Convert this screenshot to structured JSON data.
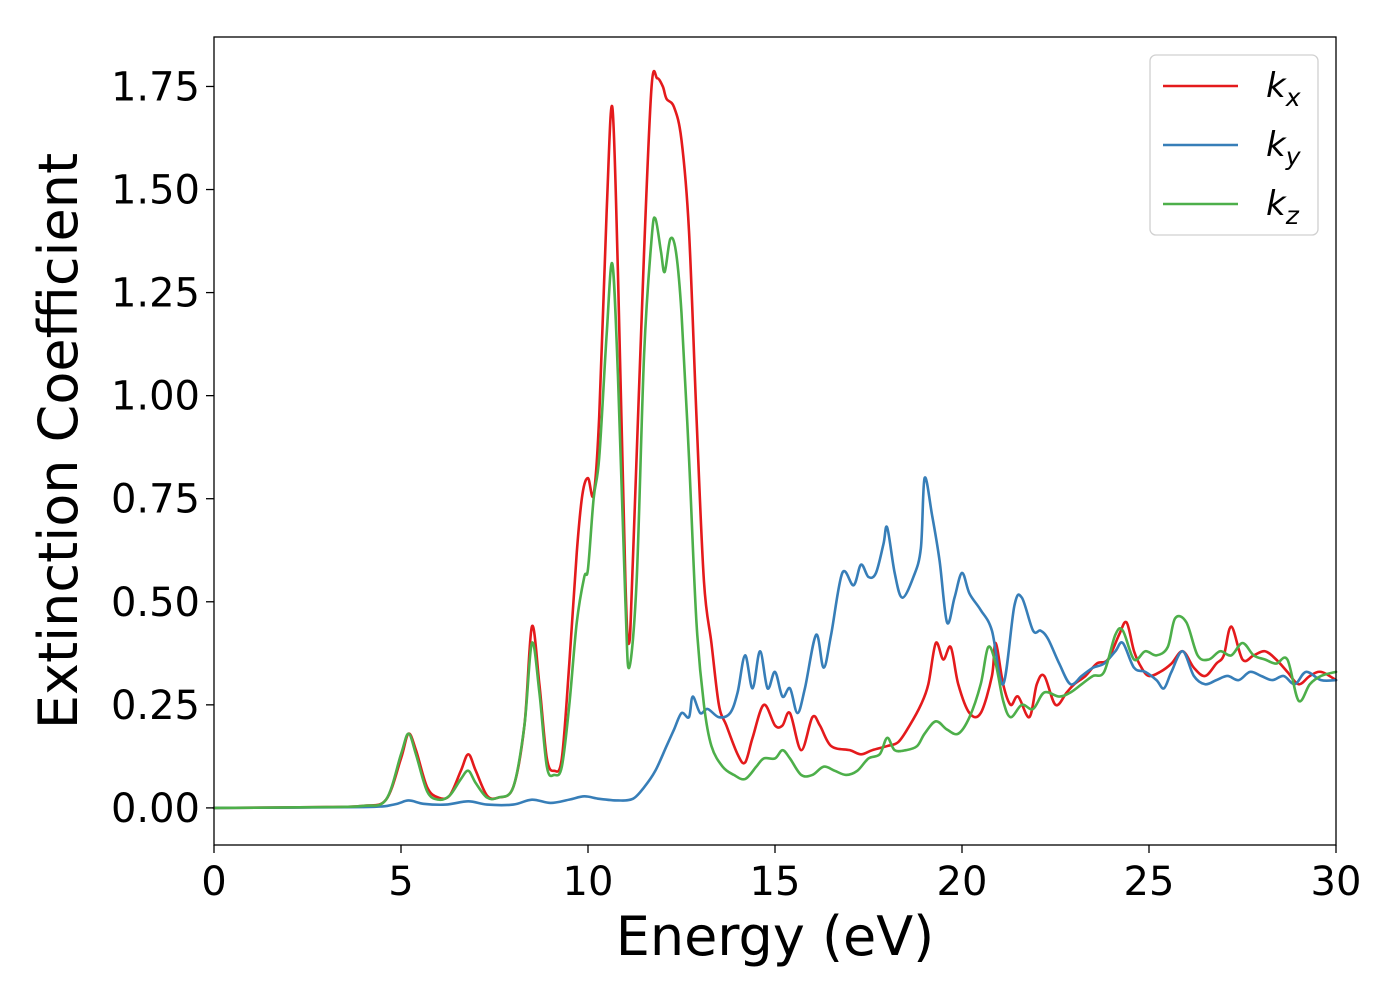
{
  "chart_data": {
    "type": "line",
    "xlabel": "Energy (eV)",
    "ylabel": "Extinction Coefficient",
    "xlim": [
      0,
      30
    ],
    "ylim": [
      -0.09,
      1.87
    ],
    "xticks": [
      0,
      5,
      10,
      15,
      20,
      25,
      30
    ],
    "xtick_labels": [
      "0",
      "5",
      "10",
      "15",
      "20",
      "25",
      "30"
    ],
    "yticks": [
      0.0,
      0.25,
      0.5,
      0.75,
      1.0,
      1.25,
      1.5,
      1.75
    ],
    "ytick_labels": [
      "0.00",
      "0.25",
      "0.50",
      "0.75",
      "1.00",
      "1.25",
      "1.50",
      "1.75"
    ],
    "grid": false,
    "legend_position": "top-right",
    "series": [
      {
        "name": "k_x",
        "legend_base": "k",
        "legend_sub": "x",
        "color": "#e41a1c",
        "points": [
          [
            0,
            0.0
          ],
          [
            3,
            0.002
          ],
          [
            4,
            0.005
          ],
          [
            4.6,
            0.02
          ],
          [
            5.0,
            0.12
          ],
          [
            5.2,
            0.18
          ],
          [
            5.4,
            0.14
          ],
          [
            5.7,
            0.05
          ],
          [
            6.0,
            0.025
          ],
          [
            6.3,
            0.03
          ],
          [
            6.6,
            0.09
          ],
          [
            6.8,
            0.13
          ],
          [
            7.0,
            0.09
          ],
          [
            7.3,
            0.03
          ],
          [
            7.6,
            0.025
          ],
          [
            8.0,
            0.05
          ],
          [
            8.3,
            0.2
          ],
          [
            8.5,
            0.44
          ],
          [
            8.7,
            0.3
          ],
          [
            8.9,
            0.12
          ],
          [
            9.1,
            0.09
          ],
          [
            9.3,
            0.12
          ],
          [
            9.5,
            0.35
          ],
          [
            9.7,
            0.62
          ],
          [
            9.85,
            0.76
          ],
          [
            10.0,
            0.8
          ],
          [
            10.15,
            0.76
          ],
          [
            10.3,
            0.95
          ],
          [
            10.5,
            1.45
          ],
          [
            10.65,
            1.7
          ],
          [
            10.8,
            1.3
          ],
          [
            11.0,
            0.55
          ],
          [
            11.1,
            0.4
          ],
          [
            11.2,
            0.6
          ],
          [
            11.5,
            1.35
          ],
          [
            11.7,
            1.75
          ],
          [
            11.85,
            1.77
          ],
          [
            12.0,
            1.75
          ],
          [
            12.1,
            1.72
          ],
          [
            12.3,
            1.7
          ],
          [
            12.5,
            1.62
          ],
          [
            12.7,
            1.4
          ],
          [
            12.9,
            0.95
          ],
          [
            13.1,
            0.55
          ],
          [
            13.3,
            0.4
          ],
          [
            13.5,
            0.25
          ],
          [
            13.7,
            0.2
          ],
          [
            14.0,
            0.13
          ],
          [
            14.2,
            0.11
          ],
          [
            14.4,
            0.17
          ],
          [
            14.7,
            0.25
          ],
          [
            15.0,
            0.2
          ],
          [
            15.2,
            0.2
          ],
          [
            15.4,
            0.23
          ],
          [
            15.7,
            0.14
          ],
          [
            16.0,
            0.22
          ],
          [
            16.2,
            0.2
          ],
          [
            16.5,
            0.15
          ],
          [
            17.0,
            0.14
          ],
          [
            17.3,
            0.13
          ],
          [
            17.6,
            0.14
          ],
          [
            18.0,
            0.15
          ],
          [
            18.3,
            0.16
          ],
          [
            18.6,
            0.2
          ],
          [
            18.9,
            0.25
          ],
          [
            19.1,
            0.3
          ],
          [
            19.3,
            0.4
          ],
          [
            19.5,
            0.36
          ],
          [
            19.7,
            0.39
          ],
          [
            19.9,
            0.3
          ],
          [
            20.2,
            0.23
          ],
          [
            20.5,
            0.23
          ],
          [
            20.8,
            0.32
          ],
          [
            20.9,
            0.4
          ],
          [
            21.1,
            0.3
          ],
          [
            21.3,
            0.25
          ],
          [
            21.5,
            0.27
          ],
          [
            21.8,
            0.22
          ],
          [
            22.0,
            0.3
          ],
          [
            22.2,
            0.32
          ],
          [
            22.5,
            0.25
          ],
          [
            22.8,
            0.28
          ],
          [
            23.0,
            0.3
          ],
          [
            23.3,
            0.32
          ],
          [
            23.6,
            0.35
          ],
          [
            23.9,
            0.36
          ],
          [
            24.2,
            0.42
          ],
          [
            24.4,
            0.45
          ],
          [
            24.6,
            0.38
          ],
          [
            24.8,
            0.34
          ],
          [
            25.0,
            0.32
          ],
          [
            25.3,
            0.33
          ],
          [
            25.6,
            0.35
          ],
          [
            25.9,
            0.38
          ],
          [
            26.2,
            0.34
          ],
          [
            26.5,
            0.32
          ],
          [
            26.8,
            0.35
          ],
          [
            27.0,
            0.37
          ],
          [
            27.2,
            0.44
          ],
          [
            27.5,
            0.36
          ],
          [
            27.8,
            0.37
          ],
          [
            28.1,
            0.38
          ],
          [
            28.4,
            0.36
          ],
          [
            28.7,
            0.33
          ],
          [
            29.0,
            0.3
          ],
          [
            29.3,
            0.32
          ],
          [
            29.6,
            0.33
          ],
          [
            30.0,
            0.31
          ]
        ]
      },
      {
        "name": "k_y",
        "legend_base": "k",
        "legend_sub": "y",
        "color": "#377eb8",
        "points": [
          [
            0,
            0.0
          ],
          [
            4,
            0.002
          ],
          [
            4.8,
            0.008
          ],
          [
            5.2,
            0.018
          ],
          [
            5.6,
            0.01
          ],
          [
            6.2,
            0.008
          ],
          [
            6.8,
            0.016
          ],
          [
            7.3,
            0.008
          ],
          [
            8.0,
            0.008
          ],
          [
            8.5,
            0.02
          ],
          [
            9.0,
            0.012
          ],
          [
            9.5,
            0.02
          ],
          [
            9.9,
            0.028
          ],
          [
            10.3,
            0.022
          ],
          [
            10.8,
            0.018
          ],
          [
            11.2,
            0.022
          ],
          [
            11.5,
            0.05
          ],
          [
            11.8,
            0.09
          ],
          [
            12.1,
            0.15
          ],
          [
            12.3,
            0.19
          ],
          [
            12.5,
            0.23
          ],
          [
            12.7,
            0.22
          ],
          [
            12.8,
            0.27
          ],
          [
            13.0,
            0.23
          ],
          [
            13.2,
            0.24
          ],
          [
            13.5,
            0.22
          ],
          [
            13.8,
            0.23
          ],
          [
            14.0,
            0.28
          ],
          [
            14.2,
            0.37
          ],
          [
            14.4,
            0.29
          ],
          [
            14.6,
            0.38
          ],
          [
            14.8,
            0.29
          ],
          [
            15.0,
            0.33
          ],
          [
            15.2,
            0.27
          ],
          [
            15.4,
            0.29
          ],
          [
            15.6,
            0.23
          ],
          [
            15.8,
            0.29
          ],
          [
            16.1,
            0.42
          ],
          [
            16.3,
            0.34
          ],
          [
            16.5,
            0.42
          ],
          [
            16.8,
            0.57
          ],
          [
            17.1,
            0.54
          ],
          [
            17.3,
            0.59
          ],
          [
            17.5,
            0.56
          ],
          [
            17.7,
            0.57
          ],
          [
            17.9,
            0.64
          ],
          [
            18.0,
            0.68
          ],
          [
            18.2,
            0.57
          ],
          [
            18.4,
            0.51
          ],
          [
            18.7,
            0.56
          ],
          [
            18.9,
            0.63
          ],
          [
            19.0,
            0.8
          ],
          [
            19.2,
            0.71
          ],
          [
            19.4,
            0.6
          ],
          [
            19.6,
            0.45
          ],
          [
            19.8,
            0.51
          ],
          [
            20.0,
            0.57
          ],
          [
            20.2,
            0.52
          ],
          [
            20.5,
            0.48
          ],
          [
            20.8,
            0.43
          ],
          [
            21.1,
            0.3
          ],
          [
            21.4,
            0.49
          ],
          [
            21.6,
            0.51
          ],
          [
            21.9,
            0.43
          ],
          [
            22.1,
            0.43
          ],
          [
            22.3,
            0.41
          ],
          [
            22.6,
            0.35
          ],
          [
            22.9,
            0.3
          ],
          [
            23.2,
            0.32
          ],
          [
            23.5,
            0.34
          ],
          [
            23.8,
            0.35
          ],
          [
            24.1,
            0.38
          ],
          [
            24.3,
            0.4
          ],
          [
            24.6,
            0.34
          ],
          [
            24.9,
            0.33
          ],
          [
            25.2,
            0.31
          ],
          [
            25.4,
            0.29
          ],
          [
            25.6,
            0.33
          ],
          [
            25.9,
            0.38
          ],
          [
            26.2,
            0.32
          ],
          [
            26.5,
            0.3
          ],
          [
            26.8,
            0.31
          ],
          [
            27.1,
            0.32
          ],
          [
            27.4,
            0.31
          ],
          [
            27.7,
            0.33
          ],
          [
            28.0,
            0.32
          ],
          [
            28.3,
            0.31
          ],
          [
            28.6,
            0.32
          ],
          [
            28.9,
            0.3
          ],
          [
            29.2,
            0.33
          ],
          [
            29.6,
            0.31
          ],
          [
            30.0,
            0.31
          ]
        ]
      },
      {
        "name": "k_z",
        "legend_base": "k",
        "legend_sub": "z",
        "color": "#4daf4a",
        "points": [
          [
            0,
            0.0
          ],
          [
            3,
            0.002
          ],
          [
            4,
            0.005
          ],
          [
            4.6,
            0.02
          ],
          [
            5.0,
            0.13
          ],
          [
            5.2,
            0.18
          ],
          [
            5.4,
            0.13
          ],
          [
            5.7,
            0.04
          ],
          [
            6.0,
            0.02
          ],
          [
            6.3,
            0.03
          ],
          [
            6.6,
            0.07
          ],
          [
            6.8,
            0.09
          ],
          [
            7.0,
            0.06
          ],
          [
            7.3,
            0.025
          ],
          [
            7.6,
            0.025
          ],
          [
            8.0,
            0.05
          ],
          [
            8.3,
            0.2
          ],
          [
            8.5,
            0.4
          ],
          [
            8.7,
            0.28
          ],
          [
            8.9,
            0.1
          ],
          [
            9.1,
            0.08
          ],
          [
            9.3,
            0.1
          ],
          [
            9.5,
            0.25
          ],
          [
            9.7,
            0.45
          ],
          [
            9.9,
            0.56
          ],
          [
            10.0,
            0.58
          ],
          [
            10.15,
            0.75
          ],
          [
            10.3,
            0.85
          ],
          [
            10.5,
            1.15
          ],
          [
            10.65,
            1.32
          ],
          [
            10.8,
            1.05
          ],
          [
            11.0,
            0.5
          ],
          [
            11.1,
            0.34
          ],
          [
            11.3,
            0.55
          ],
          [
            11.5,
            1.1
          ],
          [
            11.7,
            1.38
          ],
          [
            11.8,
            1.43
          ],
          [
            11.95,
            1.35
          ],
          [
            12.05,
            1.3
          ],
          [
            12.2,
            1.38
          ],
          [
            12.35,
            1.35
          ],
          [
            12.5,
            1.2
          ],
          [
            12.7,
            0.85
          ],
          [
            12.9,
            0.45
          ],
          [
            13.1,
            0.25
          ],
          [
            13.3,
            0.15
          ],
          [
            13.6,
            0.1
          ],
          [
            13.9,
            0.08
          ],
          [
            14.2,
            0.07
          ],
          [
            14.5,
            0.1
          ],
          [
            14.7,
            0.12
          ],
          [
            15.0,
            0.12
          ],
          [
            15.2,
            0.14
          ],
          [
            15.4,
            0.12
          ],
          [
            15.7,
            0.08
          ],
          [
            16.0,
            0.08
          ],
          [
            16.3,
            0.1
          ],
          [
            16.6,
            0.09
          ],
          [
            16.9,
            0.08
          ],
          [
            17.2,
            0.09
          ],
          [
            17.5,
            0.12
          ],
          [
            17.8,
            0.13
          ],
          [
            18.0,
            0.17
          ],
          [
            18.2,
            0.14
          ],
          [
            18.5,
            0.14
          ],
          [
            18.8,
            0.15
          ],
          [
            19.0,
            0.18
          ],
          [
            19.3,
            0.21
          ],
          [
            19.6,
            0.19
          ],
          [
            19.9,
            0.18
          ],
          [
            20.2,
            0.22
          ],
          [
            20.5,
            0.3
          ],
          [
            20.7,
            0.39
          ],
          [
            20.9,
            0.35
          ],
          [
            21.1,
            0.26
          ],
          [
            21.3,
            0.22
          ],
          [
            21.6,
            0.25
          ],
          [
            21.9,
            0.24
          ],
          [
            22.2,
            0.28
          ],
          [
            22.6,
            0.27
          ],
          [
            22.9,
            0.28
          ],
          [
            23.2,
            0.3
          ],
          [
            23.5,
            0.32
          ],
          [
            23.8,
            0.33
          ],
          [
            24.1,
            0.42
          ],
          [
            24.3,
            0.43
          ],
          [
            24.6,
            0.36
          ],
          [
            24.9,
            0.38
          ],
          [
            25.2,
            0.37
          ],
          [
            25.5,
            0.39
          ],
          [
            25.7,
            0.46
          ],
          [
            26.0,
            0.45
          ],
          [
            26.3,
            0.37
          ],
          [
            26.6,
            0.36
          ],
          [
            26.9,
            0.38
          ],
          [
            27.2,
            0.37
          ],
          [
            27.5,
            0.4
          ],
          [
            27.8,
            0.37
          ],
          [
            28.1,
            0.36
          ],
          [
            28.4,
            0.35
          ],
          [
            28.7,
            0.36
          ],
          [
            29.0,
            0.26
          ],
          [
            29.3,
            0.3
          ],
          [
            29.6,
            0.32
          ],
          [
            30.0,
            0.33
          ]
        ]
      }
    ]
  }
}
